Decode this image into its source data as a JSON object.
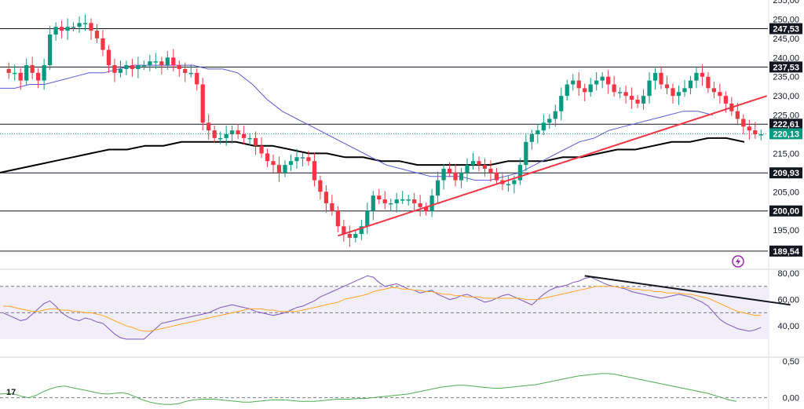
{
  "chart_data": [
    {
      "type": "candlestick",
      "title": "",
      "ylim": [
        185,
        255
      ],
      "y_ticks": [
        "255,00",
        "250,00",
        "245,00",
        "240,00",
        "235,00",
        "230,00",
        "225,00",
        "220,00",
        "215,00",
        "210,00",
        "205,00",
        "200,00",
        "195,00",
        "190,00"
      ],
      "horizontal_levels": [
        {
          "value": 247.53,
          "label": "247,53"
        },
        {
          "value": 237.53,
          "label": "237,53"
        },
        {
          "value": 222.61,
          "label": "222,61"
        },
        {
          "value": 209.93,
          "label": "209,93"
        },
        {
          "value": 200.0,
          "label": "200,00"
        },
        {
          "value": 189.54,
          "label": "189,54"
        }
      ],
      "last_price": {
        "value": 220.13,
        "label": "220,13",
        "color": "#089981"
      },
      "close_series": [
        237,
        236,
        236,
        234,
        238,
        236,
        234,
        238,
        246,
        248,
        247,
        248,
        248,
        249,
        249,
        247,
        245,
        242,
        238,
        236,
        237,
        238,
        237,
        238,
        238,
        239,
        239,
        238,
        240,
        238,
        237,
        236,
        236,
        233,
        223,
        221,
        219,
        219,
        220,
        221,
        220,
        219,
        219,
        217,
        215,
        213,
        212,
        210,
        212,
        213,
        214,
        214,
        213,
        208,
        205,
        202,
        200,
        196,
        194,
        193,
        194,
        196,
        200,
        204,
        203,
        202,
        202,
        203,
        203,
        203,
        202,
        201,
        200,
        204,
        208,
        211,
        210,
        208,
        210,
        212,
        213,
        212,
        211,
        210,
        208,
        207,
        207,
        208,
        212,
        218,
        220,
        221,
        223,
        224,
        226,
        230,
        233,
        234,
        232,
        231,
        233,
        234,
        235,
        233,
        231,
        231,
        230,
        229,
        228,
        230,
        234,
        236,
        233,
        232,
        230,
        231,
        232,
        234,
        236,
        235,
        232,
        231,
        230,
        228,
        226,
        224,
        222,
        221,
        220,
        220
      ],
      "candles_visible": 130,
      "ma_short": [
        232,
        232,
        233,
        233,
        234,
        235,
        236,
        236,
        237,
        238,
        238,
        238,
        238,
        238,
        237,
        237,
        236,
        233,
        229,
        226,
        224,
        222,
        220,
        218,
        216,
        214,
        212,
        211,
        210,
        209,
        209,
        209,
        208,
        208,
        209,
        210,
        212,
        214,
        216,
        218,
        219,
        221,
        222,
        223,
        224,
        225,
        226,
        226,
        225
      ],
      "ma_long": [
        210,
        211,
        212,
        213,
        214,
        215,
        216,
        216,
        217,
        217,
        218,
        218,
        218,
        218,
        217,
        217,
        216,
        215,
        215,
        214,
        214,
        213,
        213,
        212,
        212,
        212,
        212,
        212,
        213,
        213,
        213,
        214,
        214,
        215,
        216,
        216,
        217,
        218,
        218,
        219,
        219,
        218
      ],
      "trendline": {
        "start": {
          "candle": 57,
          "value": 193.5
        },
        "end": {
          "candle": 130,
          "value": 230
        },
        "color": "#f23645"
      },
      "candle_up_color": "#089981",
      "candle_down_color": "#f23645",
      "ma_short_color": "#5b5bd6",
      "ma_long_color": "#000000"
    },
    {
      "type": "line",
      "name": "rsi",
      "ylim": [
        30,
        80
      ],
      "y_ticks": [
        "80,00",
        "60,00",
        "40,00"
      ],
      "values": [
        50,
        48,
        46,
        44,
        45,
        49,
        53,
        57,
        59,
        55,
        50,
        47,
        45,
        44,
        46,
        45,
        43,
        42,
        38,
        34,
        31,
        29,
        30,
        28,
        30,
        34,
        38,
        42,
        43,
        44,
        45,
        46,
        47,
        48,
        49,
        50,
        52,
        54,
        55,
        56,
        55,
        54,
        53,
        51,
        50,
        49,
        48,
        49,
        50,
        52,
        54,
        55,
        57,
        59,
        62,
        64,
        66,
        68,
        70,
        72,
        74,
        76,
        78,
        77,
        73,
        70,
        71,
        72,
        70,
        68,
        67,
        65,
        66,
        67,
        64,
        62,
        60,
        61,
        63,
        64,
        62,
        60,
        58,
        59,
        61,
        63,
        64,
        62,
        60,
        58,
        56,
        60,
        64,
        67,
        69,
        70,
        71,
        73,
        74,
        76,
        77,
        75,
        73,
        71,
        70,
        69,
        68,
        66,
        65,
        64,
        63,
        62,
        61,
        62,
        63,
        64,
        63,
        62,
        60,
        58,
        55,
        50,
        45,
        42,
        40,
        38,
        37,
        36,
        37,
        39
      ],
      "signal": [
        55,
        55,
        54,
        53,
        52,
        51,
        51,
        52,
        53,
        53,
        52,
        52,
        51,
        51,
        50,
        50,
        49,
        48,
        46,
        44,
        42,
        40,
        39,
        37,
        36,
        36,
        37,
        38,
        39,
        40,
        41,
        42,
        43,
        44,
        45,
        46,
        47,
        48,
        49,
        50,
        51,
        52,
        53,
        53,
        53,
        52,
        52,
        51,
        51,
        51,
        51,
        52,
        53,
        54,
        55,
        56,
        57,
        58,
        60,
        61,
        62,
        63,
        64,
        66,
        67,
        68,
        69,
        69,
        68,
        68,
        67,
        67,
        66,
        66,
        65,
        64,
        64,
        63,
        63,
        62,
        62,
        62,
        61,
        61,
        61,
        61,
        61,
        61,
        61,
        60,
        60,
        60,
        61,
        62,
        63,
        64,
        65,
        66,
        67,
        68,
        69,
        70,
        70,
        70,
        70,
        69,
        69,
        68,
        68,
        67,
        67,
        66,
        66,
        65,
        65,
        65,
        64,
        64,
        63,
        62,
        61,
        59,
        57,
        55,
        53,
        51,
        50,
        49,
        48,
        48
      ],
      "divergence_line": {
        "start": {
          "candle": 99,
          "value": 78
        },
        "end": {
          "candle": 134,
          "value": 56
        }
      },
      "guide_levels": [
        70,
        50
      ],
      "line_color": "#7e57c2",
      "signal_color": "#ffa726"
    },
    {
      "type": "line",
      "name": "oscillator",
      "ylim": [
        -0.1,
        0.5
      ],
      "y_ticks": [
        "0,50",
        "0,00"
      ],
      "values": [
        0.05,
        0.06,
        0.05,
        0.02,
        0.0,
        0.03,
        0.08,
        0.12,
        0.15,
        0.16,
        0.14,
        0.12,
        0.1,
        0.08,
        0.06,
        0.05,
        0.06,
        0.07,
        0.05,
        0.01,
        -0.03,
        -0.06,
        -0.08,
        -0.09,
        -0.09,
        -0.08,
        -0.05,
        -0.03,
        -0.02,
        -0.02,
        -0.02,
        -0.03,
        -0.04,
        -0.05,
        -0.06,
        -0.06,
        -0.05,
        -0.04,
        -0.03,
        -0.03,
        -0.03,
        -0.04,
        -0.05,
        -0.05,
        -0.05,
        -0.04,
        -0.03,
        -0.02,
        -0.02,
        -0.02,
        -0.01,
        -0.01,
        0.0,
        0.01,
        0.02,
        0.03,
        0.04,
        0.05,
        0.07,
        0.09,
        0.11,
        0.13,
        0.15,
        0.16,
        0.17,
        0.17,
        0.16,
        0.15,
        0.14,
        0.13,
        0.13,
        0.14,
        0.15,
        0.16,
        0.17,
        0.18,
        0.2,
        0.22,
        0.24,
        0.26,
        0.28,
        0.3,
        0.31,
        0.32,
        0.33,
        0.33,
        0.32,
        0.3,
        0.28,
        0.26,
        0.24,
        0.22,
        0.2,
        0.18,
        0.16,
        0.14,
        0.12,
        0.1,
        0.08,
        0.06,
        0.03,
        0.0,
        -0.03,
        -0.05
      ],
      "zero_label": "0,00",
      "line_color": "#4caf50"
    }
  ],
  "tradingview_logo_text": "17"
}
